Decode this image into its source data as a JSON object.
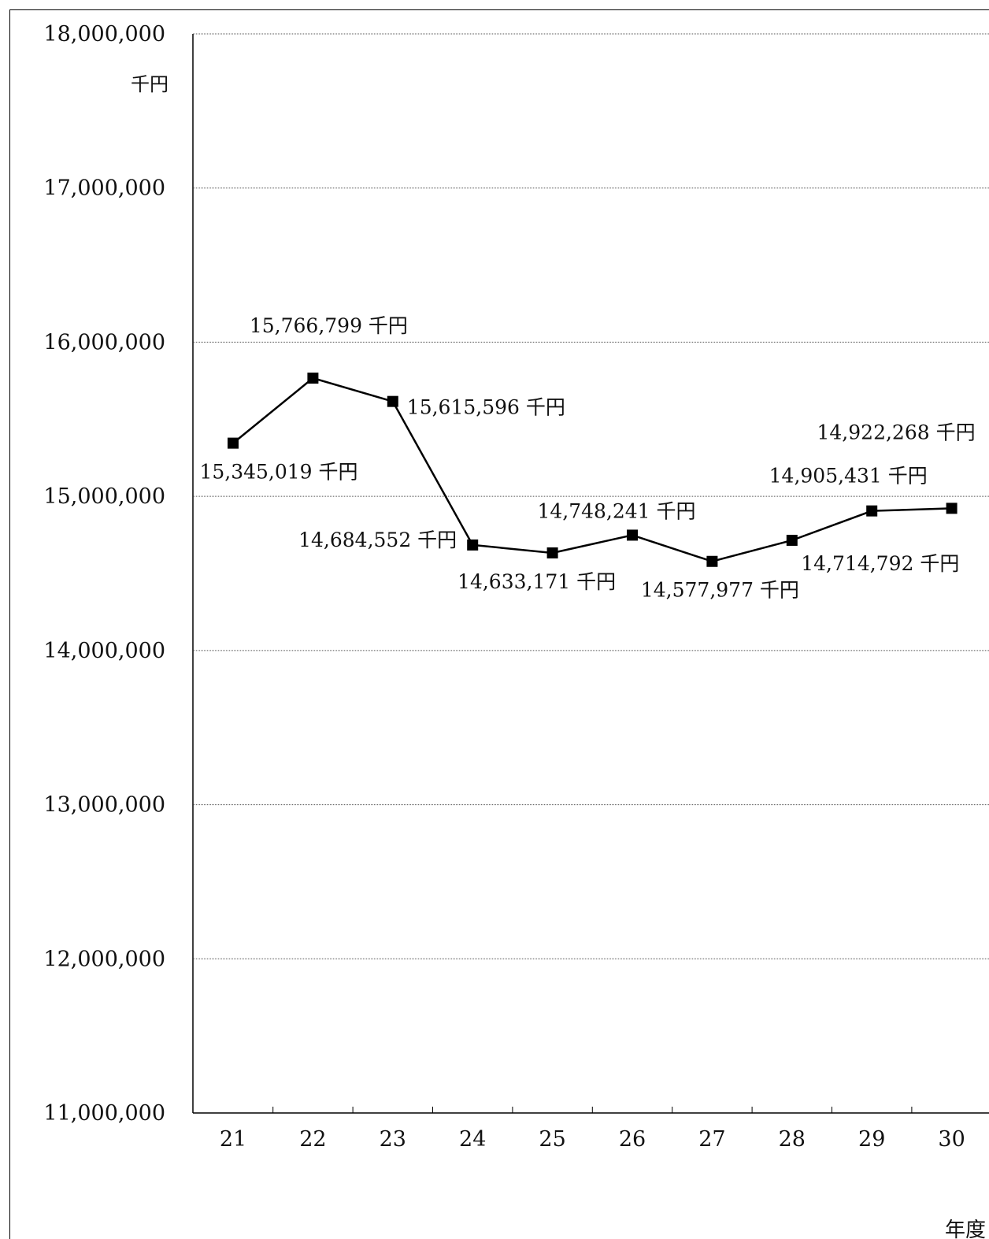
{
  "chart_data": {
    "type": "line",
    "categories": [
      "21",
      "22",
      "23",
      "24",
      "25",
      "26",
      "27",
      "28",
      "29",
      "30"
    ],
    "series": [
      {
        "values": [
          15345019,
          15766799,
          15615596,
          14684552,
          14633171,
          14748241,
          14577977,
          14714792,
          14905431,
          14922268
        ]
      }
    ],
    "data_labels": [
      "15,345,019 千円",
      "15,766,799 千円",
      "15,615,596 千円",
      "14,684,552 千円",
      "14,633,171 千円",
      "14,748,241 千円",
      "14,577,977 千円",
      "14,714,792 千円",
      "14,905,431 千円",
      "14,922,268 千円"
    ],
    "y_ticks": [
      11000000,
      12000000,
      13000000,
      14000000,
      15000000,
      16000000,
      17000000,
      18000000
    ],
    "y_tick_labels": [
      "11,000,000",
      "12,000,000",
      "13,000,000",
      "14,000,000",
      "15,000,000",
      "16,000,000",
      "17,000,000",
      "18,000,000"
    ],
    "ylim": [
      11000000,
      18000000
    ],
    "y_unit": "千円",
    "xlabel": "年度",
    "grid": true,
    "marker": "square",
    "color": "#000000"
  }
}
